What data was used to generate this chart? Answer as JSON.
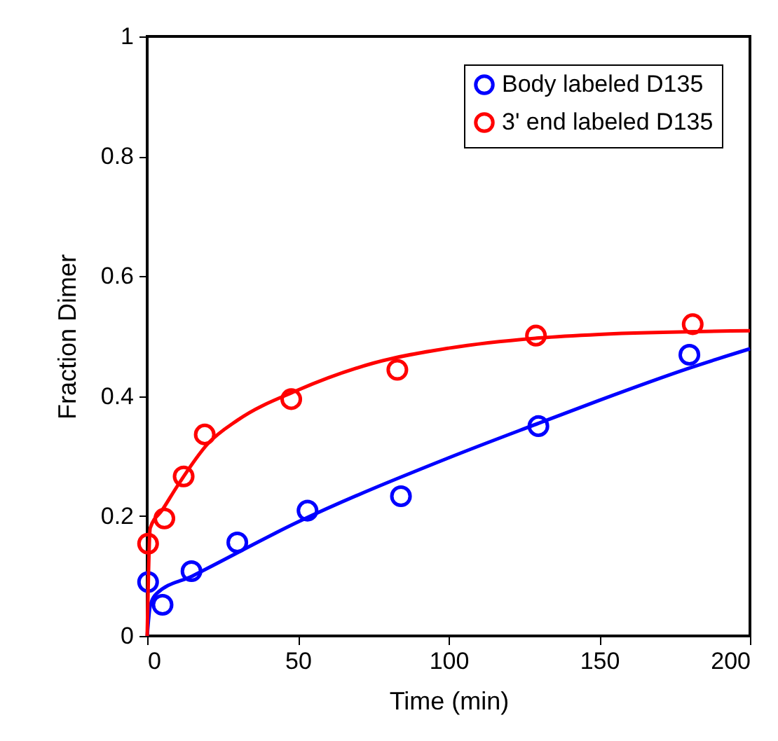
{
  "chart_data": {
    "type": "scatter",
    "xlabel": "Time (min)",
    "ylabel": "Fraction Dimer",
    "xlim": [
      0,
      200
    ],
    "xticks": [
      0,
      50,
      100,
      150,
      200
    ],
    "ylim": [
      0,
      1
    ],
    "yticks": [
      {
        "value": 0,
        "label": "0"
      },
      0.2,
      0.4,
      0.6,
      0.8,
      {
        "value": 1,
        "label": "1"
      }
    ],
    "legend": "top right",
    "series": [
      {
        "name": "Body labeled D135",
        "marker": "circle",
        "color": "#0000ff",
        "x": [
          0.3,
          5.1,
          14.7,
          29.9,
          53.2,
          84.2,
          129.8,
          179.9
        ],
        "values": [
          0.09,
          0.052,
          0.108,
          0.156,
          0.209,
          0.233,
          0.35,
          0.469
        ]
      },
      {
        "name": "3' end labeled D135",
        "marker": "circle",
        "color": "#ff0000",
        "x": [
          0.3,
          5.7,
          12.1,
          19.1,
          47.8,
          83,
          129,
          181
        ],
        "values": [
          0.154,
          0.196,
          0.266,
          0.336,
          0.395,
          0.444,
          0.501,
          0.52
        ]
      },
      {
        "type": "line",
        "color": "#0000ff",
        "x": [
          0,
          1,
          3,
          15,
          50,
          100,
          130,
          150,
          180,
          200
        ],
        "values": [
          0,
          0.05,
          0.07,
          0.1,
          0.19,
          0.297,
          0.355,
          0.393,
          0.447,
          0.479
        ]
      },
      {
        "type": "line",
        "color": "#ff0000",
        "x": [
          0,
          1,
          5,
          10,
          20,
          30,
          50,
          75,
          100,
          130,
          150,
          200
        ],
        "values": [
          0,
          0.18,
          0.21,
          0.25,
          0.32,
          0.36,
          0.41,
          0.455,
          0.48,
          0.497,
          0.503,
          0.509
        ]
      }
    ]
  }
}
